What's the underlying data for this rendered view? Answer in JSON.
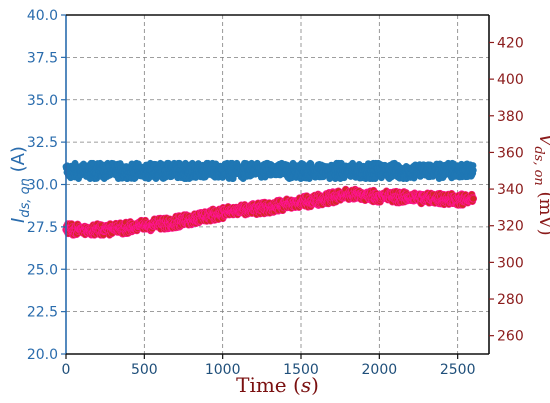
{
  "chart_data": {
    "type": "scatter",
    "x": {
      "label": "Time",
      "label_var": "s",
      "lim": [
        0,
        2700
      ],
      "ticks": [
        0,
        500,
        1000,
        1500,
        2000,
        2500
      ]
    },
    "y_left": {
      "label_main": "I",
      "label_sub": "ds, on",
      "label_unit": "(A)",
      "lim": [
        20.0,
        40.0
      ],
      "ticks": [
        "20.0",
        "22.5",
        "25.0",
        "27.5",
        "30.0",
        "32.5",
        "35.0",
        "37.5",
        "40.0"
      ],
      "color": "#2a6cad"
    },
    "y_right": {
      "label_main": "V",
      "label_sub": "ds, on",
      "label_unit": "(mV)",
      "lim": [
        250,
        435
      ],
      "ticks": [
        260,
        280,
        300,
        320,
        340,
        360,
        380,
        400,
        420
      ],
      "color": "#8b1c1c"
    },
    "grid": true,
    "series": [
      {
        "axis": "left",
        "color": "#1f77b4",
        "x_range": [
          0,
          2600
        ],
        "trend_x": [
          0,
          2600
        ],
        "trend_y": [
          30.8,
          30.8
        ],
        "spread": 0.45
      },
      {
        "axis": "right",
        "color": "#d62728",
        "edge_color": "#ff1493",
        "x_range": [
          0,
          2600
        ],
        "trend_x": [
          0,
          300,
          700,
          1000,
          1300,
          1600,
          1800,
          2000,
          2300,
          2600
        ],
        "trend_y": [
          318,
          318,
          322,
          327,
          330,
          334,
          337,
          336,
          335,
          334
        ],
        "spread": 3.0
      }
    ]
  }
}
